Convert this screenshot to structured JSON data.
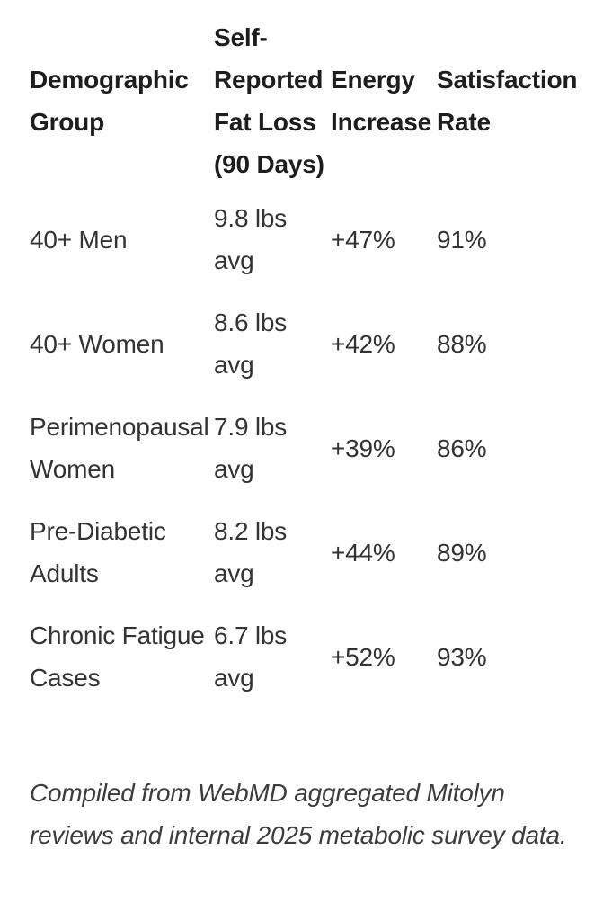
{
  "table": {
    "columns": [
      {
        "label": "Demographic Group"
      },
      {
        "label": "Self-Reported Fat Loss (90 Days)"
      },
      {
        "label": "Energy Increase"
      },
      {
        "label": "Satisfaction Rate"
      }
    ],
    "rows": [
      {
        "group": "40+ Men",
        "fat_loss": "9.8 lbs avg",
        "energy": "+47%",
        "satisfaction": "91%"
      },
      {
        "group": "40+ Women",
        "fat_loss": "8.6 lbs avg",
        "energy": "+42%",
        "satisfaction": "88%"
      },
      {
        "group": "Perimenopausal Women",
        "fat_loss": "7.9 lbs avg",
        "energy": "+39%",
        "satisfaction": "86%"
      },
      {
        "group": "Pre-Diabetic Adults",
        "fat_loss": "8.2 lbs avg",
        "energy": "+44%",
        "satisfaction": "89%"
      },
      {
        "group": "Chronic Fatigue Cases",
        "fat_loss": "6.7 lbs avg",
        "energy": "+52%",
        "satisfaction": "93%"
      }
    ]
  },
  "footnote": {
    "text": "Compiled from WebMD aggregated Mitolyn reviews and internal 2025 metabolic survey data."
  },
  "colors": {
    "background": "#ffffff",
    "header_text": "#1d1d1d",
    "body_text": "#333333",
    "footnote_text": "#3d3d3d"
  },
  "chart_data": {
    "type": "table",
    "title": "",
    "columns": [
      "Demographic Group",
      "Self-Reported Fat Loss (90 Days)",
      "Energy Increase",
      "Satisfaction Rate"
    ],
    "rows": [
      [
        "40+ Men",
        "9.8 lbs avg",
        "+47%",
        "91%"
      ],
      [
        "40+ Women",
        "8.6 lbs avg",
        "+42%",
        "88%"
      ],
      [
        "Perimenopausal Women",
        "7.9 lbs avg",
        "+39%",
        "86%"
      ],
      [
        "Pre-Diabetic Adults",
        "8.2 lbs avg",
        "+44%",
        "89%"
      ],
      [
        "Chronic Fatigue Cases",
        "6.7 lbs avg",
        "+52%",
        "93%"
      ]
    ],
    "series": [
      {
        "name": "Fat Loss (lbs avg, 90 days)",
        "values": [
          9.8,
          8.6,
          7.9,
          8.2,
          6.7
        ]
      },
      {
        "name": "Energy Increase (%)",
        "values": [
          47,
          42,
          39,
          44,
          52
        ]
      },
      {
        "name": "Satisfaction Rate (%)",
        "values": [
          91,
          88,
          86,
          89,
          93
        ]
      }
    ],
    "categories": [
      "40+ Men",
      "40+ Women",
      "Perimenopausal Women",
      "Pre-Diabetic Adults",
      "Chronic Fatigue Cases"
    ],
    "annotations": [
      "Compiled from WebMD aggregated Mitolyn reviews and internal 2025 metabolic survey data."
    ]
  }
}
